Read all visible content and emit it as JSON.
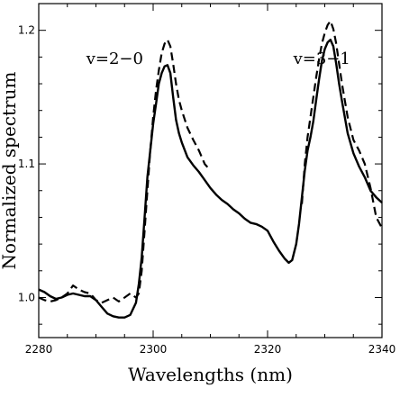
{
  "chart_data": {
    "type": "line",
    "title": "",
    "xlabel": "Wavelengths (nm)",
    "ylabel": "Normalized spectrum",
    "xlim": [
      2280,
      2340
    ],
    "ylim": [
      0.97,
      1.22
    ],
    "xticks": [
      2280,
      2300,
      2320,
      2340
    ],
    "yticks": [
      1.0,
      1.1,
      1.2
    ],
    "xtick_labels": [
      "2280",
      "2300",
      "2320",
      "2340"
    ],
    "ytick_labels": [
      "1.0",
      "1.1",
      "1.2"
    ],
    "grid": false,
    "annotations": [
      {
        "text": "v=2−0",
        "x": 2288.3,
        "y": 1.175
      },
      {
        "text": "v=3−1",
        "x": 2324.5,
        "y": 1.175
      }
    ],
    "series": [
      {
        "style": "solid",
        "color": "#000000",
        "points": [
          [
            2280,
            1.006
          ],
          [
            2281,
            1.004
          ],
          [
            2282,
            1.001
          ],
          [
            2283,
            0.999
          ],
          [
            2284,
            1.0
          ],
          [
            2285,
            1.002
          ],
          [
            2286,
            1.003
          ],
          [
            2287,
            1.002
          ],
          [
            2288,
            1.001
          ],
          [
            2289,
            1.001
          ],
          [
            2290,
            0.998
          ],
          [
            2291,
            0.993
          ],
          [
            2292,
            0.988
          ],
          [
            2293,
            0.986
          ],
          [
            2294,
            0.985
          ],
          [
            2295,
            0.985
          ],
          [
            2296,
            0.987
          ],
          [
            2297,
            0.996
          ],
          [
            2297.5,
            1.01
          ],
          [
            2298,
            1.03
          ],
          [
            2298.5,
            1.06
          ],
          [
            2299,
            1.09
          ],
          [
            2299.5,
            1.11
          ],
          [
            2300,
            1.13
          ],
          [
            2300.5,
            1.145
          ],
          [
            2301,
            1.16
          ],
          [
            2301.5,
            1.168
          ],
          [
            2302,
            1.173
          ],
          [
            2302.5,
            1.174
          ],
          [
            2303,
            1.168
          ],
          [
            2303.5,
            1.15
          ],
          [
            2304,
            1.133
          ],
          [
            2304.5,
            1.123
          ],
          [
            2305,
            1.116
          ],
          [
            2306,
            1.105
          ],
          [
            2307,
            1.099
          ],
          [
            2308,
            1.094
          ],
          [
            2309,
            1.088
          ],
          [
            2310,
            1.082
          ],
          [
            2311,
            1.077
          ],
          [
            2312,
            1.073
          ],
          [
            2313,
            1.07
          ],
          [
            2314,
            1.066
          ],
          [
            2315,
            1.063
          ],
          [
            2316,
            1.059
          ],
          [
            2317,
            1.056
          ],
          [
            2318,
            1.055
          ],
          [
            2319,
            1.053
          ],
          [
            2320,
            1.05
          ],
          [
            2321,
            1.042
          ],
          [
            2322,
            1.035
          ],
          [
            2323,
            1.029
          ],
          [
            2323.7,
            1.026
          ],
          [
            2324.3,
            1.028
          ],
          [
            2325,
            1.04
          ],
          [
            2325.5,
            1.055
          ],
          [
            2326,
            1.075
          ],
          [
            2326.5,
            1.095
          ],
          [
            2327,
            1.11
          ],
          [
            2327.5,
            1.12
          ],
          [
            2328,
            1.132
          ],
          [
            2328.5,
            1.148
          ],
          [
            2329,
            1.163
          ],
          [
            2329.5,
            1.177
          ],
          [
            2330,
            1.186
          ],
          [
            2330.5,
            1.191
          ],
          [
            2331,
            1.193
          ],
          [
            2331.5,
            1.188
          ],
          [
            2332,
            1.175
          ],
          [
            2332.5,
            1.16
          ],
          [
            2333,
            1.147
          ],
          [
            2334,
            1.123
          ],
          [
            2335,
            1.108
          ],
          [
            2336,
            1.098
          ],
          [
            2337,
            1.09
          ],
          [
            2338,
            1.08
          ],
          [
            2339,
            1.075
          ],
          [
            2340,
            1.071
          ]
        ]
      },
      {
        "style": "dashed",
        "color": "#000000",
        "points": [
          [
            2280,
            1.0
          ],
          [
            2281,
            0.998
          ],
          [
            2282,
            0.997
          ],
          [
            2283,
            0.998
          ],
          [
            2284,
            1.0
          ],
          [
            2285,
            1.003
          ],
          [
            2286,
            1.009
          ],
          [
            2287,
            1.006
          ],
          [
            2288,
            1.004
          ],
          [
            2289,
            1.003
          ],
          [
            2290,
            0.998
          ],
          [
            2291,
            0.996
          ],
          [
            2292,
            0.998
          ],
          [
            2293,
            1.0
          ],
          [
            2294,
            0.997
          ],
          [
            2295,
            1.0
          ],
          [
            2296,
            1.003
          ],
          [
            2297,
            1.0
          ],
          [
            2297.5,
            1.003
          ],
          [
            2298,
            1.02
          ],
          [
            2298.5,
            1.05
          ],
          [
            2299,
            1.08
          ],
          [
            2299.5,
            1.11
          ],
          [
            2300,
            1.135
          ],
          [
            2300.5,
            1.155
          ],
          [
            2301,
            1.17
          ],
          [
            2301.5,
            1.183
          ],
          [
            2302,
            1.19
          ],
          [
            2302.5,
            1.193
          ],
          [
            2303,
            1.188
          ],
          [
            2303.5,
            1.175
          ],
          [
            2304,
            1.16
          ],
          [
            2304.5,
            1.148
          ],
          [
            2305,
            1.14
          ],
          [
            2306,
            1.127
          ],
          [
            2307,
            1.118
          ],
          [
            2308,
            1.11
          ],
          [
            2309,
            1.1
          ],
          [
            2310,
            1.095
          ]
        ]
      },
      {
        "style": "dashed",
        "color": "#000000",
        "points": [
          [
            2326,
            1.07
          ],
          [
            2326.5,
            1.1
          ],
          [
            2327,
            1.12
          ],
          [
            2327.5,
            1.135
          ],
          [
            2328,
            1.15
          ],
          [
            2328.5,
            1.165
          ],
          [
            2329,
            1.178
          ],
          [
            2329.5,
            1.19
          ],
          [
            2330,
            1.198
          ],
          [
            2330.5,
            1.204
          ],
          [
            2331,
            1.207
          ],
          [
            2331.5,
            1.201
          ],
          [
            2332,
            1.19
          ],
          [
            2332.5,
            1.175
          ],
          [
            2333,
            1.16
          ],
          [
            2334,
            1.135
          ],
          [
            2335,
            1.118
          ],
          [
            2336,
            1.11
          ],
          [
            2337,
            1.1
          ],
          [
            2338,
            1.082
          ],
          [
            2339,
            1.06
          ],
          [
            2340,
            1.052
          ]
        ]
      }
    ]
  }
}
